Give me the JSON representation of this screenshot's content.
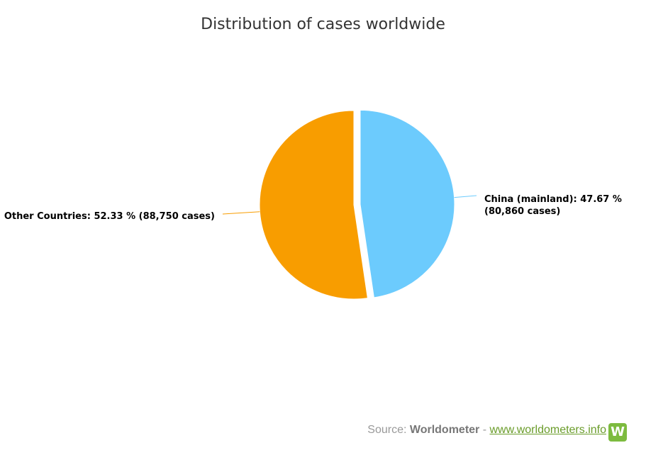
{
  "chart_data": {
    "type": "pie",
    "title": "Distribution of cases worldwide",
    "slices": [
      {
        "name": "China (mainland)",
        "percent": 47.67,
        "cases": 80860,
        "color": "#6ccbfd",
        "label_line1": "China (mainland): 47.67 %",
        "label_line2": "(80,860 cases)",
        "exploded": true
      },
      {
        "name": "Other Countries",
        "percent": 52.33,
        "cases": 88750,
        "color": "#f89d00",
        "label_line1": "Other Countries: 52.33 % (88,750 cases)",
        "label_line2": "",
        "exploded": false
      }
    ],
    "start_angle_deg": 0,
    "legend": "none"
  },
  "source": {
    "prefix": "Source: ",
    "brand": "Worldometer",
    "separator": " - ",
    "link_text": "www.worldometers.info",
    "logo_letter": "W"
  }
}
